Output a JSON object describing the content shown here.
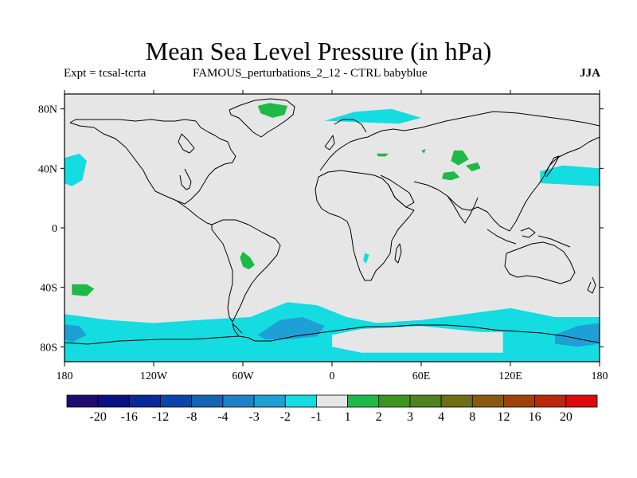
{
  "title": "Mean Sea Level Pressure (in hPa)",
  "subtitle_left": "Expt = tcsal-tcrta",
  "subtitle_center": "FAMOUS_perturbations_2_12 - CTRL babyblue",
  "subtitle_right": "JJA",
  "chart_data": {
    "type": "filled-contour-map",
    "variable": "Mean Sea Level Pressure difference",
    "units": "hPa",
    "season": "JJA",
    "lon_range": [
      -180,
      180
    ],
    "lat_range": [
      -90,
      90
    ],
    "x_ticks": [
      {
        "value": -180,
        "label": "180"
      },
      {
        "value": -120,
        "label": "120W"
      },
      {
        "value": -60,
        "label": "60W"
      },
      {
        "value": 0,
        "label": "0"
      },
      {
        "value": 60,
        "label": "60E"
      },
      {
        "value": 120,
        "label": "120E"
      },
      {
        "value": 180,
        "label": "180"
      }
    ],
    "y_ticks": [
      {
        "value": 80,
        "label": "80N"
      },
      {
        "value": 40,
        "label": "40N"
      },
      {
        "value": 0,
        "label": "0"
      },
      {
        "value": -40,
        "label": "40S"
      },
      {
        "value": -80,
        "label": "80S"
      }
    ],
    "background_color": "#e6e6e6",
    "colorbar": {
      "colors": [
        "#200a6e",
        "#0a0f82",
        "#0a2896",
        "#0a46aa",
        "#1464b4",
        "#1e82c8",
        "#1ea0d7",
        "#14dce1",
        "#e6e6e6",
        "#1eb946",
        "#3c961e",
        "#50821e",
        "#6e6e14",
        "#875a0f",
        "#a0410a",
        "#b9280a",
        "#dc0a0a"
      ],
      "labels": [
        "-20",
        "-16",
        "-12",
        "-8",
        "-4",
        "-3",
        "-2",
        "-1",
        "1",
        "2",
        "3",
        "4",
        "8",
        "12",
        "16",
        "20"
      ]
    },
    "anomaly_regions": [
      {
        "class": "-2 to -1",
        "color": "#14dce1",
        "description": "Southern Ocean circumpolar band",
        "polygon": [
          [
            -180,
            -58
          ],
          [
            -150,
            -62
          ],
          [
            -120,
            -64
          ],
          [
            -90,
            -62
          ],
          [
            -55,
            -60
          ],
          [
            -30,
            -50
          ],
          [
            -10,
            -52
          ],
          [
            10,
            -60
          ],
          [
            30,
            -64
          ],
          [
            60,
            -62
          ],
          [
            90,
            -58
          ],
          [
            120,
            -54
          ],
          [
            150,
            -60
          ],
          [
            180,
            -60
          ],
          [
            180,
            -90
          ],
          [
            -180,
            -90
          ]
        ]
      },
      {
        "class": "-3 to -2",
        "color": "#1ea0d7",
        "description": "Weddell Sea low",
        "polygon": [
          [
            -50,
            -72
          ],
          [
            -35,
            -62
          ],
          [
            -20,
            -60
          ],
          [
            -5,
            -66
          ],
          [
            -10,
            -73
          ],
          [
            -30,
            -75
          ],
          [
            -45,
            -75
          ]
        ]
      },
      {
        "class": "-3 to -2",
        "color": "#1ea0d7",
        "description": "Amundsen/Ross Sea low",
        "polygon": [
          [
            -180,
            -65
          ],
          [
            -170,
            -66
          ],
          [
            -165,
            -72
          ],
          [
            -175,
            -77
          ],
          [
            -180,
            -75
          ]
        ]
      },
      {
        "class": "-3 to -2",
        "color": "#1ea0d7",
        "description": "Pacific sector south of NZ",
        "polygon": [
          [
            150,
            -72
          ],
          [
            165,
            -66
          ],
          [
            180,
            -64
          ],
          [
            180,
            -78
          ],
          [
            165,
            -80
          ],
          [
            150,
            -78
          ]
        ]
      },
      {
        "class": "1 to 2",
        "color": "#e6e6e6",
        "description": "East Antarctica",
        "polygon": [
          [
            0,
            -72
          ],
          [
            20,
            -68
          ],
          [
            60,
            -66
          ],
          [
            100,
            -70
          ],
          [
            115,
            -70
          ],
          [
            115,
            -84
          ],
          [
            20,
            -84
          ],
          [
            0,
            -80
          ]
        ]
      },
      {
        "class": "-2 to -1",
        "color": "#14dce1",
        "description": "North Pacific subtropical high",
        "polygon": [
          [
            -180,
            47
          ],
          [
            -170,
            50
          ],
          [
            -165,
            45
          ],
          [
            -168,
            32
          ],
          [
            -175,
            28
          ],
          [
            -180,
            30
          ]
        ]
      },
      {
        "class": "-2 to -1",
        "color": "#14dce1",
        "description": "Northwest Pacific",
        "polygon": [
          [
            140,
            38
          ],
          [
            155,
            42
          ],
          [
            180,
            40
          ],
          [
            180,
            28
          ],
          [
            160,
            29
          ],
          [
            140,
            30
          ]
        ]
      },
      {
        "class": "-2 to -1",
        "color": "#14dce1",
        "description": "Arctic Barents/Kara",
        "polygon": [
          [
            -5,
            72
          ],
          [
            15,
            78
          ],
          [
            40,
            80
          ],
          [
            60,
            74
          ],
          [
            45,
            70
          ],
          [
            20,
            71
          ]
        ]
      },
      {
        "class": "1 to 2",
        "color": "#1eb946",
        "description": "Greenland",
        "polygon": [
          [
            -50,
            82
          ],
          [
            -42,
            84
          ],
          [
            -30,
            82
          ],
          [
            -32,
            76
          ],
          [
            -40,
            74
          ],
          [
            -48,
            77
          ]
        ]
      },
      {
        "class": "1 to 2",
        "color": "#1eb946",
        "description": "South America",
        "polygon": [
          [
            -60,
            -16
          ],
          [
            -55,
            -20
          ],
          [
            -52,
            -25
          ],
          [
            -56,
            -28
          ],
          [
            -60,
            -26
          ],
          [
            -62,
            -20
          ]
        ]
      },
      {
        "class": "1 to 2",
        "color": "#1eb946",
        "description": "South Pacific",
        "polygon": [
          [
            -175,
            -38
          ],
          [
            -165,
            -38
          ],
          [
            -160,
            -41
          ],
          [
            -165,
            -46
          ],
          [
            -175,
            -45
          ]
        ]
      },
      {
        "class": "1 to 2",
        "color": "#1eb946",
        "description": "Central Asia",
        "polygon": [
          [
            82,
            52
          ],
          [
            88,
            52
          ],
          [
            92,
            46
          ],
          [
            85,
            42
          ],
          [
            80,
            45
          ]
        ]
      },
      {
        "class": "1 to 2",
        "color": "#1eb946",
        "description": "Mongolia",
        "polygon": [
          [
            90,
            42
          ],
          [
            98,
            44
          ],
          [
            100,
            40
          ],
          [
            94,
            38
          ]
        ]
      },
      {
        "class": "1 to 2",
        "color": "#1eb946",
        "description": "Tibet",
        "polygon": [
          [
            75,
            37
          ],
          [
            82,
            38
          ],
          [
            86,
            34
          ],
          [
            80,
            32
          ],
          [
            74,
            33
          ]
        ]
      },
      {
        "class": "1 to 2",
        "color": "#1eb946",
        "description": "Caspian",
        "polygon": [
          [
            60,
            52
          ],
          [
            63,
            53
          ],
          [
            62,
            50
          ]
        ]
      },
      {
        "class": "1 to 2",
        "color": "#1eb946",
        "description": "Black Sea",
        "polygon": [
          [
            30,
            50
          ],
          [
            38,
            50
          ],
          [
            36,
            48
          ],
          [
            31,
            48
          ]
        ]
      },
      {
        "class": "-2 to -1",
        "color": "#14dce1",
        "description": "Southern Africa",
        "polygon": [
          [
            22,
            -17
          ],
          [
            25,
            -18
          ],
          [
            23,
            -24
          ],
          [
            21,
            -22
          ]
        ]
      }
    ]
  }
}
